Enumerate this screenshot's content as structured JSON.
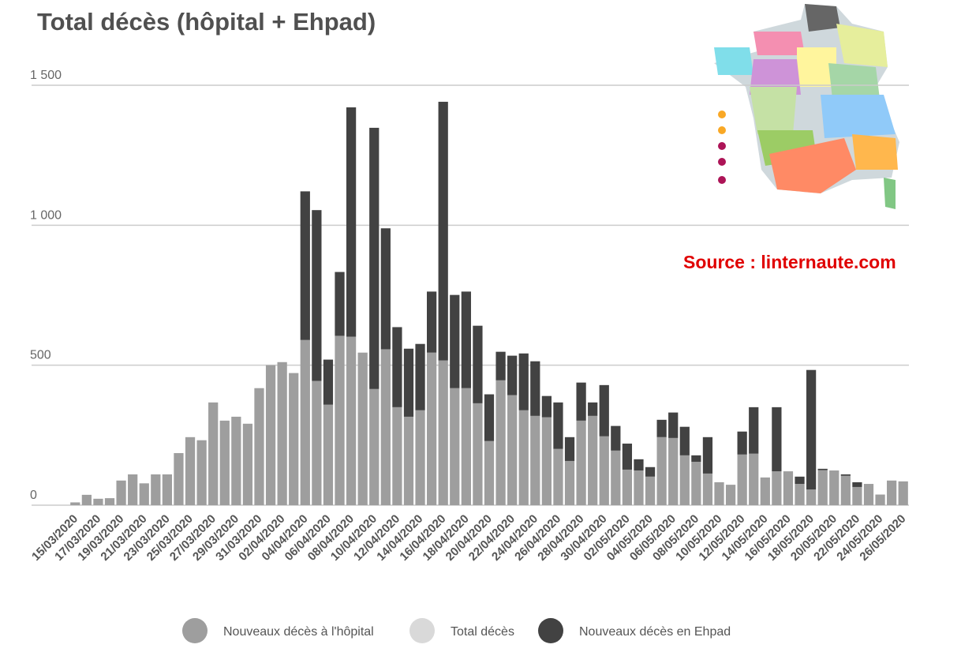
{
  "chart_data": {
    "type": "stacked_bar",
    "title": "Total décès (hôpital + Ehpad)",
    "annotation": "Source : linternaute.com",
    "categories": [
      "15/03/2020",
      null,
      "17/03/2020",
      null,
      "19/03/2020",
      null,
      "21/03/2020",
      null,
      "23/03/2020",
      null,
      "25/03/2020",
      null,
      "27/03/2020",
      null,
      "29/03/2020",
      null,
      "31/03/2020",
      null,
      "02/04/2020",
      null,
      "04/04/2020",
      null,
      "06/04/2020",
      null,
      "08/04/2020",
      null,
      "10/04/2020",
      null,
      "12/04/2020",
      null,
      "14/04/2020",
      null,
      "16/04/2020",
      null,
      "18/04/2020",
      null,
      "20/04/2020",
      null,
      "22/04/2020",
      null,
      "24/04/2020",
      null,
      "26/04/2020",
      null,
      "28/04/2020",
      null,
      "30/04/2020",
      null,
      "02/05/2020",
      null,
      "04/05/2020",
      null,
      "06/05/2020",
      null,
      "08/05/2020",
      null,
      "10/05/2020",
      null,
      "12/05/2020",
      null,
      "14/05/2020",
      null,
      "16/05/2020",
      null,
      "18/05/2020",
      null,
      "20/05/2020",
      null,
      "22/05/2020",
      null,
      "24/05/2020",
      null,
      "26/05/2020"
    ],
    "series": [
      {
        "name": "Nouveaux décès à l'hôpital",
        "color": "#9e9e9e",
        "values": [
          10,
          37,
          23,
          25,
          88,
          110,
          78,
          110,
          110,
          186,
          243,
          232,
          367,
          302,
          316,
          291,
          418,
          500,
          511,
          472,
          590,
          444,
          359,
          605,
          602,
          545,
          415,
          557,
          350,
          316,
          339,
          545,
          517,
          418,
          418,
          364,
          229,
          446,
          393,
          339,
          319,
          314,
          201,
          158,
          302,
          319,
          246,
          195,
          127,
          124,
          102,
          243,
          240,
          178,
          155,
          113,
          82,
          73,
          181,
          184,
          99,
          121,
          121,
          76,
          56,
          125,
          124,
          105,
          65,
          76,
          38,
          88,
          85
        ]
      },
      {
        "name": "Total décès",
        "color": "#d9d9d9"
      },
      {
        "name": "Nouveaux décès en Ehpad",
        "color": "#424242",
        "values": [
          0,
          0,
          0,
          0,
          0,
          0,
          0,
          0,
          0,
          0,
          0,
          0,
          0,
          0,
          0,
          0,
          0,
          0,
          0,
          0,
          531,
          610,
          161,
          228,
          819,
          0,
          933,
          432,
          286,
          243,
          237,
          218,
          924,
          333,
          345,
          277,
          167,
          102,
          141,
          203,
          195,
          76,
          166,
          85,
          136,
          48,
          183,
          88,
          93,
          40,
          34,
          62,
          91,
          102,
          23,
          130,
          0,
          0,
          82,
          166,
          0,
          229,
          0,
          26,
          427,
          5,
          0,
          5,
          17,
          0,
          0,
          0,
          0
        ]
      }
    ],
    "ylim": [
      0,
      1500
    ],
    "yticks": [
      0,
      500,
      {
        "value": 1000,
        "label": "1 000"
      },
      {
        "value": 1500,
        "label": "1 500"
      }
    ],
    "grid": true,
    "legend": "bottom"
  }
}
